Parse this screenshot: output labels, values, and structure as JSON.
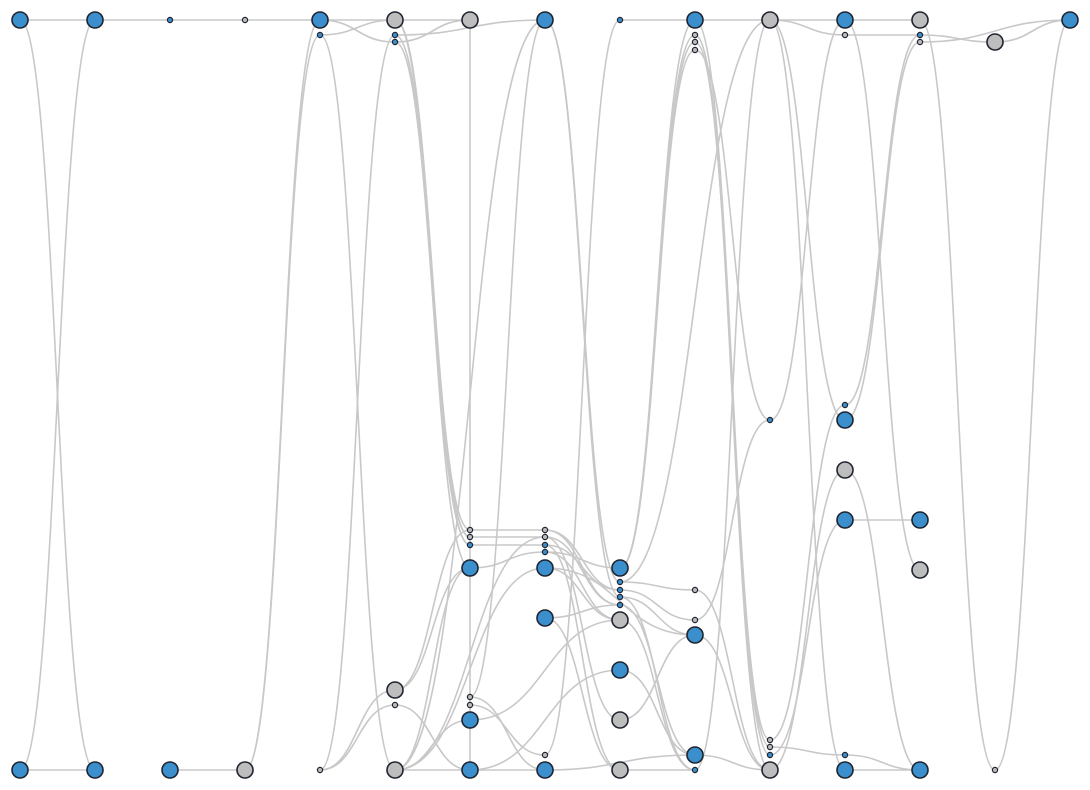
{
  "colors": {
    "link": "#c8c8c8",
    "primary": "#3a8fcc",
    "secondary": "#bdbdbd",
    "outline": "#1f2430"
  },
  "diagram": {
    "type": "node-link graph",
    "columns": 15,
    "nodes": [
      {
        "id": "n0",
        "col": 0,
        "row": 0,
        "kind": "primary",
        "size": "large"
      },
      {
        "id": "n1",
        "col": 0,
        "row": 1,
        "kind": "primary",
        "size": "large"
      },
      {
        "id": "n2",
        "col": 1,
        "row": 0,
        "kind": "primary",
        "size": "large"
      },
      {
        "id": "n3",
        "col": 1,
        "row": 1,
        "kind": "primary",
        "size": "large"
      },
      {
        "id": "n4",
        "col": 2,
        "row": 0,
        "kind": "primary",
        "size": "small"
      },
      {
        "id": "n5",
        "col": 2,
        "row": 1,
        "kind": "primary",
        "size": "large"
      },
      {
        "id": "n6",
        "col": 3,
        "row": 0,
        "kind": "secondary",
        "size": "small"
      },
      {
        "id": "n7",
        "col": 3,
        "row": 1,
        "kind": "secondary",
        "size": "large"
      },
      {
        "id": "n8",
        "col": 4,
        "row": 0,
        "kind": "primary",
        "size": "large"
      },
      {
        "id": "n9",
        "col": 4,
        "row": 1,
        "kind": "primary",
        "size": "small"
      },
      {
        "id": "n10",
        "col": 4,
        "row": 2,
        "kind": "secondary",
        "size": "small"
      },
      {
        "id": "n11",
        "col": 5,
        "row": 0,
        "kind": "secondary",
        "size": "large"
      },
      {
        "id": "n12",
        "col": 5,
        "row": 1,
        "kind": "primary",
        "size": "small"
      },
      {
        "id": "n13",
        "col": 5,
        "row": 2,
        "kind": "primary",
        "size": "small"
      },
      {
        "id": "n14",
        "col": 5,
        "row": 3,
        "kind": "secondary",
        "size": "large"
      },
      {
        "id": "n15",
        "col": 5,
        "row": 4,
        "kind": "secondary",
        "size": "small"
      },
      {
        "id": "n16",
        "col": 5,
        "row": 5,
        "kind": "secondary",
        "size": "large"
      },
      {
        "id": "n17",
        "col": 6,
        "row": 0,
        "kind": "secondary",
        "size": "large"
      },
      {
        "id": "n18",
        "col": 6,
        "row": 1,
        "kind": "secondary",
        "size": "small"
      },
      {
        "id": "n19",
        "col": 6,
        "row": 2,
        "kind": "secondary",
        "size": "small"
      },
      {
        "id": "n20",
        "col": 6,
        "row": 3,
        "kind": "primary",
        "size": "small"
      },
      {
        "id": "n21",
        "col": 6,
        "row": 4,
        "kind": "primary",
        "size": "large"
      },
      {
        "id": "n22",
        "col": 6,
        "row": 5,
        "kind": "secondary",
        "size": "small"
      },
      {
        "id": "n23",
        "col": 6,
        "row": 6,
        "kind": "secondary",
        "size": "small"
      },
      {
        "id": "n24",
        "col": 6,
        "row": 7,
        "kind": "primary",
        "size": "large"
      },
      {
        "id": "n25",
        "col": 6,
        "row": 8,
        "kind": "primary",
        "size": "large"
      },
      {
        "id": "n26",
        "col": 7,
        "row": 0,
        "kind": "primary",
        "size": "large"
      },
      {
        "id": "n27",
        "col": 7,
        "row": 1,
        "kind": "secondary",
        "size": "small"
      },
      {
        "id": "n28",
        "col": 7,
        "row": 2,
        "kind": "secondary",
        "size": "small"
      },
      {
        "id": "n29",
        "col": 7,
        "row": 3,
        "kind": "primary",
        "size": "small"
      },
      {
        "id": "n30",
        "col": 7,
        "row": 4,
        "kind": "primary",
        "size": "small"
      },
      {
        "id": "n31",
        "col": 7,
        "row": 5,
        "kind": "primary",
        "size": "large"
      },
      {
        "id": "n32",
        "col": 7,
        "row": 6,
        "kind": "primary",
        "size": "large"
      },
      {
        "id": "n33",
        "col": 7,
        "row": 7,
        "kind": "secondary",
        "size": "small"
      },
      {
        "id": "n34",
        "col": 7,
        "row": 8,
        "kind": "primary",
        "size": "large"
      },
      {
        "id": "n35",
        "col": 8,
        "row": 0,
        "kind": "primary",
        "size": "small"
      },
      {
        "id": "n36",
        "col": 8,
        "row": 1,
        "kind": "primary",
        "size": "large"
      },
      {
        "id": "n37",
        "col": 8,
        "row": 2,
        "kind": "primary",
        "size": "small"
      },
      {
        "id": "n38",
        "col": 8,
        "row": 3,
        "kind": "primary",
        "size": "small"
      },
      {
        "id": "n39",
        "col": 8,
        "row": 4,
        "kind": "primary",
        "size": "small"
      },
      {
        "id": "n40",
        "col": 8,
        "row": 5,
        "kind": "primary",
        "size": "small"
      },
      {
        "id": "n41",
        "col": 8,
        "row": 6,
        "kind": "secondary",
        "size": "large"
      },
      {
        "id": "n42",
        "col": 8,
        "row": 7,
        "kind": "primary",
        "size": "large"
      },
      {
        "id": "n43",
        "col": 8,
        "row": 8,
        "kind": "secondary",
        "size": "large"
      },
      {
        "id": "n44",
        "col": 8,
        "row": 9,
        "kind": "secondary",
        "size": "large"
      },
      {
        "id": "n45",
        "col": 9,
        "row": 0,
        "kind": "primary",
        "size": "large"
      },
      {
        "id": "n46",
        "col": 9,
        "row": 1,
        "kind": "secondary",
        "size": "small"
      },
      {
        "id": "n47",
        "col": 9,
        "row": 2,
        "kind": "secondary",
        "size": "small"
      },
      {
        "id": "n48",
        "col": 9,
        "row": 3,
        "kind": "secondary",
        "size": "small"
      },
      {
        "id": "n49",
        "col": 9,
        "row": 4,
        "kind": "secondary",
        "size": "small"
      },
      {
        "id": "n50",
        "col": 9,
        "row": 5,
        "kind": "secondary",
        "size": "small"
      },
      {
        "id": "n51",
        "col": 9,
        "row": 6,
        "kind": "primary",
        "size": "large"
      },
      {
        "id": "n52",
        "col": 9,
        "row": 7,
        "kind": "primary",
        "size": "large"
      },
      {
        "id": "n53",
        "col": 9,
        "row": 8,
        "kind": "primary",
        "size": "small"
      },
      {
        "id": "n54",
        "col": 10,
        "row": 0,
        "kind": "secondary",
        "size": "large"
      },
      {
        "id": "n55",
        "col": 10,
        "row": 1,
        "kind": "primary",
        "size": "small"
      },
      {
        "id": "n56",
        "col": 10,
        "row": 2,
        "kind": "secondary",
        "size": "small"
      },
      {
        "id": "n57",
        "col": 10,
        "row": 3,
        "kind": "secondary",
        "size": "small"
      },
      {
        "id": "n58",
        "col": 10,
        "row": 4,
        "kind": "primary",
        "size": "small"
      },
      {
        "id": "n59",
        "col": 10,
        "row": 5,
        "kind": "secondary",
        "size": "large"
      },
      {
        "id": "n60",
        "col": 11,
        "row": 0,
        "kind": "primary",
        "size": "large"
      },
      {
        "id": "n61",
        "col": 11,
        "row": 1,
        "kind": "secondary",
        "size": "small"
      },
      {
        "id": "n62",
        "col": 11,
        "row": 2,
        "kind": "primary",
        "size": "small"
      },
      {
        "id": "n63",
        "col": 11,
        "row": 3,
        "kind": "primary",
        "size": "large"
      },
      {
        "id": "n64",
        "col": 11,
        "row": 4,
        "kind": "secondary",
        "size": "large"
      },
      {
        "id": "n65",
        "col": 11,
        "row": 5,
        "kind": "primary",
        "size": "large"
      },
      {
        "id": "n66",
        "col": 11,
        "row": 6,
        "kind": "primary",
        "size": "small"
      },
      {
        "id": "n67",
        "col": 11,
        "row": 7,
        "kind": "primary",
        "size": "large"
      },
      {
        "id": "n68",
        "col": 12,
        "row": 0,
        "kind": "secondary",
        "size": "large"
      },
      {
        "id": "n69",
        "col": 12,
        "row": 1,
        "kind": "primary",
        "size": "small"
      },
      {
        "id": "n70",
        "col": 12,
        "row": 2,
        "kind": "secondary",
        "size": "small"
      },
      {
        "id": "n71",
        "col": 12,
        "row": 3,
        "kind": "primary",
        "size": "large"
      },
      {
        "id": "n72",
        "col": 12,
        "row": 4,
        "kind": "secondary",
        "size": "large"
      },
      {
        "id": "n73",
        "col": 12,
        "row": 5,
        "kind": "primary",
        "size": "large"
      },
      {
        "id": "n74",
        "col": 13,
        "row": 0,
        "kind": "secondary",
        "size": "large"
      },
      {
        "id": "n75",
        "col": 13,
        "row": 1,
        "kind": "secondary",
        "size": "small"
      },
      {
        "id": "n76",
        "col": 14,
        "row": 0,
        "kind": "primary",
        "size": "large"
      }
    ],
    "links": [
      [
        "n0",
        "n2"
      ],
      [
        "n0",
        "n3"
      ],
      [
        "n1",
        "n3"
      ],
      [
        "n1",
        "n2"
      ],
      [
        "n2",
        "n4"
      ],
      [
        "n4",
        "n6"
      ],
      [
        "n6",
        "n8"
      ],
      [
        "n5",
        "n7"
      ],
      [
        "n7",
        "n9"
      ],
      [
        "n7",
        "n8"
      ],
      [
        "n8",
        "n11"
      ],
      [
        "n8",
        "n13"
      ],
      [
        "n9",
        "n11"
      ],
      [
        "n9",
        "n16"
      ],
      [
        "n10",
        "n12"
      ],
      [
        "n10",
        "n14"
      ],
      [
        "n10",
        "n15"
      ],
      [
        "n11",
        "n17"
      ],
      [
        "n11",
        "n18"
      ],
      [
        "n11",
        "n19"
      ],
      [
        "n11",
        "n20"
      ],
      [
        "n11",
        "n21"
      ],
      [
        "n12",
        "n19"
      ],
      [
        "n12",
        "n26"
      ],
      [
        "n13",
        "n17"
      ],
      [
        "n13",
        "n20"
      ],
      [
        "n14",
        "n21"
      ],
      [
        "n14",
        "n18"
      ],
      [
        "n15",
        "n25"
      ],
      [
        "n16",
        "n21"
      ],
      [
        "n16",
        "n24"
      ],
      [
        "n16",
        "n26"
      ],
      [
        "n16",
        "n34"
      ],
      [
        "n16",
        "n31"
      ],
      [
        "n16",
        "n28"
      ],
      [
        "n17",
        "n25"
      ],
      [
        "n18",
        "n27"
      ],
      [
        "n19",
        "n28"
      ],
      [
        "n20",
        "n29"
      ],
      [
        "n21",
        "n30"
      ],
      [
        "n22",
        "n26"
      ],
      [
        "n22",
        "n34"
      ],
      [
        "n23",
        "n33"
      ],
      [
        "n24",
        "n41"
      ],
      [
        "n25",
        "n42"
      ],
      [
        "n26",
        "n37"
      ],
      [
        "n26",
        "n39"
      ],
      [
        "n27",
        "n38"
      ],
      [
        "n27",
        "n40"
      ],
      [
        "n28",
        "n40"
      ],
      [
        "n28",
        "n43"
      ],
      [
        "n29",
        "n38"
      ],
      [
        "n29",
        "n44"
      ],
      [
        "n30",
        "n36"
      ],
      [
        "n30",
        "n41"
      ],
      [
        "n31",
        "n41"
      ],
      [
        "n31",
        "n51"
      ],
      [
        "n32",
        "n44"
      ],
      [
        "n32",
        "n40"
      ],
      [
        "n33",
        "n35"
      ],
      [
        "n34",
        "n52"
      ],
      [
        "n35",
        "n45"
      ],
      [
        "n36",
        "n45"
      ],
      [
        "n36",
        "n46"
      ],
      [
        "n36",
        "n47"
      ],
      [
        "n36",
        "n48"
      ],
      [
        "n37",
        "n49"
      ],
      [
        "n37",
        "n54"
      ],
      [
        "n38",
        "n50"
      ],
      [
        "n39",
        "n51"
      ],
      [
        "n39",
        "n53"
      ],
      [
        "n40",
        "n52"
      ],
      [
        "n41",
        "n53"
      ],
      [
        "n42",
        "n52"
      ],
      [
        "n43",
        "n51"
      ],
      [
        "n44",
        "n53"
      ],
      [
        "n45",
        "n54"
      ],
      [
        "n45",
        "n57"
      ],
      [
        "n46",
        "n58"
      ],
      [
        "n46",
        "n59"
      ],
      [
        "n47",
        "n56"
      ],
      [
        "n48",
        "n55"
      ],
      [
        "n49",
        "n59"
      ],
      [
        "n50",
        "n55"
      ],
      [
        "n51",
        "n59"
      ],
      [
        "n52",
        "n59"
      ],
      [
        "n53",
        "n54"
      ],
      [
        "n54",
        "n60"
      ],
      [
        "n54",
        "n61"
      ],
      [
        "n54",
        "n63"
      ],
      [
        "n54",
        "n67"
      ],
      [
        "n55",
        "n60"
      ],
      [
        "n56",
        "n62"
      ],
      [
        "n57",
        "n66"
      ],
      [
        "n58",
        "n65"
      ],
      [
        "n59",
        "n64"
      ],
      [
        "n60",
        "n68"
      ],
      [
        "n60",
        "n72"
      ],
      [
        "n61",
        "n69"
      ],
      [
        "n62",
        "n69"
      ],
      [
        "n63",
        "n70"
      ],
      [
        "n64",
        "n73"
      ],
      [
        "n65",
        "n71"
      ],
      [
        "n66",
        "n73"
      ],
      [
        "n67",
        "n73"
      ],
      [
        "n68",
        "n75"
      ],
      [
        "n69",
        "n74"
      ],
      [
        "n70",
        "n76"
      ],
      [
        "n74",
        "n76"
      ],
      [
        "n75",
        "n76"
      ]
    ]
  }
}
